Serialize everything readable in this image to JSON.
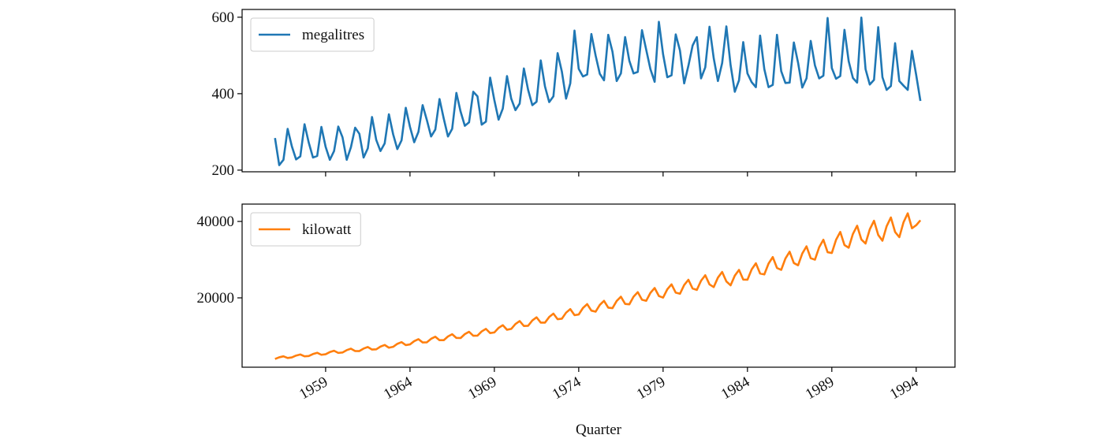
{
  "chart_data": [
    {
      "type": "line",
      "xlim": [
        1954.05,
        1996.3
      ],
      "ylim": [
        195.7,
        620.3
      ],
      "yticks": [
        200,
        400,
        600
      ],
      "legend": "upper left",
      "x": [
        1956,
        1956.25,
        1956.5,
        1956.75,
        1957,
        1957.25,
        1957.5,
        1957.75,
        1958,
        1958.25,
        1958.5,
        1958.75,
        1959,
        1959.25,
        1959.5,
        1959.75,
        1960,
        1960.25,
        1960.5,
        1960.75,
        1961,
        1961.25,
        1961.5,
        1961.75,
        1962,
        1962.25,
        1962.5,
        1962.75,
        1963,
        1963.25,
        1963.5,
        1963.75,
        1964,
        1964.25,
        1964.5,
        1964.75,
        1965,
        1965.25,
        1965.5,
        1965.75,
        1966,
        1966.25,
        1966.5,
        1966.75,
        1967,
        1967.25,
        1967.5,
        1967.75,
        1968,
        1968.25,
        1968.5,
        1968.75,
        1969,
        1969.25,
        1969.5,
        1969.75,
        1970,
        1970.25,
        1970.5,
        1970.75,
        1971,
        1971.25,
        1971.5,
        1971.75,
        1972,
        1972.25,
        1972.5,
        1972.75,
        1973,
        1973.25,
        1973.5,
        1973.75,
        1974,
        1974.25,
        1974.5,
        1974.75,
        1975,
        1975.25,
        1975.5,
        1975.75,
        1976,
        1976.25,
        1976.5,
        1976.75,
        1977,
        1977.25,
        1977.5,
        1977.75,
        1978,
        1978.25,
        1978.5,
        1978.75,
        1979,
        1979.25,
        1979.5,
        1979.75,
        1980,
        1980.25,
        1980.5,
        1980.75,
        1981,
        1981.25,
        1981.5,
        1981.75,
        1982,
        1982.25,
        1982.5,
        1982.75,
        1983,
        1983.25,
        1983.5,
        1983.75,
        1984,
        1984.25,
        1984.5,
        1984.75,
        1985,
        1985.25,
        1985.5,
        1985.75,
        1986,
        1986.25,
        1986.5,
        1986.75,
        1987,
        1987.25,
        1987.5,
        1987.75,
        1988,
        1988.25,
        1988.5,
        1988.75,
        1989,
        1989.25,
        1989.5,
        1989.75,
        1990,
        1990.25,
        1990.5,
        1990.75,
        1991,
        1991.25,
        1991.5,
        1991.75,
        1992,
        1992.25,
        1992.5,
        1992.75,
        1993,
        1993.25,
        1993.5,
        1993.75,
        1994,
        1994.25
      ],
      "series": [
        {
          "name": "megalitres",
          "color": "#1f77b4",
          "values": [
            284,
            213,
            227,
            308,
            262,
            228,
            236,
            320,
            272,
            233,
            237,
            313,
            261,
            227,
            250,
            314,
            286,
            227,
            260,
            311,
            295,
            233,
            257,
            339,
            279,
            250,
            270,
            346,
            294,
            255,
            278,
            363,
            313,
            273,
            300,
            370,
            331,
            288,
            306,
            386,
            335,
            288,
            308,
            402,
            353,
            316,
            325,
            405,
            393,
            319,
            327,
            442,
            383,
            332,
            361,
            446,
            387,
            357,
            374,
            466,
            410,
            370,
            379,
            487,
            419,
            378,
            393,
            506,
            458,
            387,
            427,
            565,
            465,
            445,
            450,
            556,
            500,
            452,
            435,
            554,
            510,
            433,
            453,
            548,
            486,
            453,
            457,
            566,
            515,
            464,
            431,
            588,
            503,
            443,
            448,
            555,
            513,
            427,
            473,
            526,
            548,
            440,
            469,
            575,
            493,
            433,
            480,
            576,
            475,
            405,
            435,
            535,
            453,
            430,
            417,
            552,
            464,
            417,
            423,
            554,
            459,
            428,
            429,
            534,
            481,
            416,
            440,
            538,
            474,
            440,
            447,
            598,
            467,
            439,
            446,
            567,
            485,
            441,
            429,
            599,
            464,
            424,
            436,
            574,
            443,
            410,
            420,
            532,
            433,
            421,
            410,
            512,
            449,
            381
          ]
        }
      ]
    },
    {
      "type": "line",
      "xlim": [
        1954.05,
        1996.3
      ],
      "ylim": [
        1850,
        44540
      ],
      "yticks": [
        20000,
        40000
      ],
      "xticks": [
        1959,
        1964,
        1969,
        1974,
        1979,
        1984,
        1989,
        1994
      ],
      "xlabel": "Quarter",
      "legend": "upper left",
      "x": [
        1956,
        1956.25,
        1956.5,
        1956.75,
        1957,
        1957.25,
        1957.5,
        1957.75,
        1958,
        1958.25,
        1958.5,
        1958.75,
        1959,
        1959.25,
        1959.5,
        1959.75,
        1960,
        1960.25,
        1960.5,
        1960.75,
        1961,
        1961.25,
        1961.5,
        1961.75,
        1962,
        1962.25,
        1962.5,
        1962.75,
        1963,
        1963.25,
        1963.5,
        1963.75,
        1964,
        1964.25,
        1964.5,
        1964.75,
        1965,
        1965.25,
        1965.5,
        1965.75,
        1966,
        1966.25,
        1966.5,
        1966.75,
        1967,
        1967.25,
        1967.5,
        1967.75,
        1968,
        1968.25,
        1968.5,
        1968.75,
        1969,
        1969.25,
        1969.5,
        1969.75,
        1970,
        1970.25,
        1970.5,
        1970.75,
        1971,
        1971.25,
        1971.5,
        1971.75,
        1972,
        1972.25,
        1972.5,
        1972.75,
        1973,
        1973.25,
        1973.5,
        1973.75,
        1974,
        1974.25,
        1974.5,
        1974.75,
        1975,
        1975.25,
        1975.5,
        1975.75,
        1976,
        1976.25,
        1976.5,
        1976.75,
        1977,
        1977.25,
        1977.5,
        1977.75,
        1978,
        1978.25,
        1978.5,
        1978.75,
        1979,
        1979.25,
        1979.5,
        1979.75,
        1980,
        1980.25,
        1980.5,
        1980.75,
        1981,
        1981.25,
        1981.5,
        1981.75,
        1982,
        1982.25,
        1982.5,
        1982.75,
        1983,
        1983.25,
        1983.5,
        1983.75,
        1984,
        1984.25,
        1984.5,
        1984.75,
        1985,
        1985.25,
        1985.5,
        1985.75,
        1986,
        1986.25,
        1986.5,
        1986.75,
        1987,
        1987.25,
        1987.5,
        1987.75,
        1988,
        1988.25,
        1988.5,
        1988.75,
        1989,
        1989.25,
        1989.5,
        1989.75,
        1990,
        1990.25,
        1990.5,
        1990.75,
        1991,
        1991.25,
        1991.5,
        1991.75,
        1992,
        1992.25,
        1992.5,
        1992.75,
        1993,
        1993.25,
        1993.5,
        1993.75,
        1994,
        1994.25
      ],
      "series": [
        {
          "name": "kilowatt",
          "color": "#ff7f0e",
          "values": [
            4000,
            4440,
            4700,
            4260,
            4420,
            4900,
            5180,
            4700,
            4780,
            5300,
            5620,
            5100,
            5240,
            5810,
            6160,
            5590,
            5700,
            6320,
            6700,
            6080,
            6070,
            6730,
            7130,
            6470,
            6530,
            7240,
            7670,
            6960,
            7180,
            7960,
            8420,
            7640,
            7820,
            8670,
            9180,
            8330,
            8370,
            9280,
            9830,
            8920,
            8920,
            9890,
            10480,
            9510,
            9480,
            10510,
            11120,
            10090,
            10120,
            11220,
            11880,
            10780,
            10950,
            12140,
            12850,
            11660,
            11870,
            13160,
            13930,
            12640,
            12700,
            14080,
            14900,
            13520,
            13520,
            14990,
            15880,
            14410,
            14540,
            16120,
            17060,
            15480,
            15640,
            17340,
            18360,
            16660,
            16380,
            18160,
            19220,
            17440,
            17300,
            19180,
            20300,
            18420,
            18310,
            20300,
            21490,
            19500,
            19230,
            21320,
            22570,
            20480,
            20060,
            22240,
            23540,
            21360,
            21070,
            23360,
            24730,
            22440,
            22080,
            24480,
            25920,
            23520,
            22820,
            25300,
            26780,
            24300,
            23280,
            25810,
            27320,
            24790,
            24750,
            27440,
            29050,
            26360,
            26130,
            28970,
            30670,
            27830,
            27320,
            30290,
            32080,
            29110,
            28520,
            31620,
            33480,
            30380,
            29990,
            33250,
            35210,
            31950,
            31740,
            35190,
            37260,
            33810,
            33120,
            36720,
            38880,
            35280,
            34220,
            37940,
            40180,
            36460,
            34960,
            38760,
            41040,
            37240,
            35880,
            39780,
            42120,
            38220,
            39000,
            40300
          ]
        }
      ]
    }
  ]
}
